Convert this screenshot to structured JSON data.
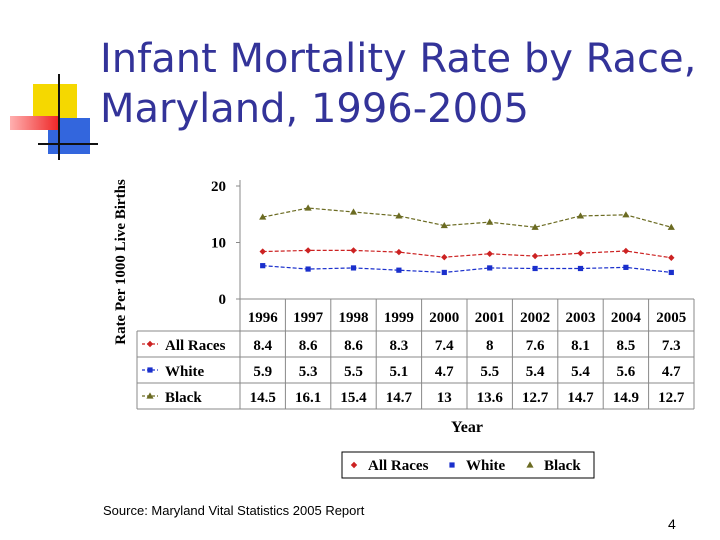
{
  "slide": {
    "title_line1": "Infant Mortality Rate by Race,",
    "title_line2": "Maryland, 1996-2005",
    "source": "Source:  Maryland Vital Statistics 2005 Report",
    "page_number": "4"
  },
  "chart_data": {
    "type": "line",
    "title": "",
    "ylabel": "Rate Per 1000 Live Births",
    "xlabel": "Year",
    "categories": [
      "1996",
      "1997",
      "1998",
      "1999",
      "2000",
      "2001",
      "2002",
      "2003",
      "2004",
      "2005"
    ],
    "ylim": [
      0,
      20
    ],
    "yticks": [
      "0",
      "10",
      "20"
    ],
    "grid": false,
    "legend": "bottom",
    "data_table": true,
    "series": [
      {
        "name": "All Races",
        "color": "#cc2222",
        "marker": "diamond",
        "values": [
          8.4,
          8.6,
          8.6,
          8.3,
          7.4,
          8,
          7.6,
          8.1,
          8.5,
          7.3
        ]
      },
      {
        "name": "White",
        "color": "#1a2fcc",
        "marker": "square",
        "values": [
          5.9,
          5.3,
          5.5,
          5.1,
          4.7,
          5.5,
          5.4,
          5.4,
          5.6,
          4.7
        ]
      },
      {
        "name": "Black",
        "color": "#6b6b22",
        "marker": "triangle",
        "values": [
          14.5,
          16.1,
          15.4,
          14.7,
          13,
          13.6,
          12.7,
          14.7,
          14.9,
          12.7
        ]
      }
    ]
  }
}
